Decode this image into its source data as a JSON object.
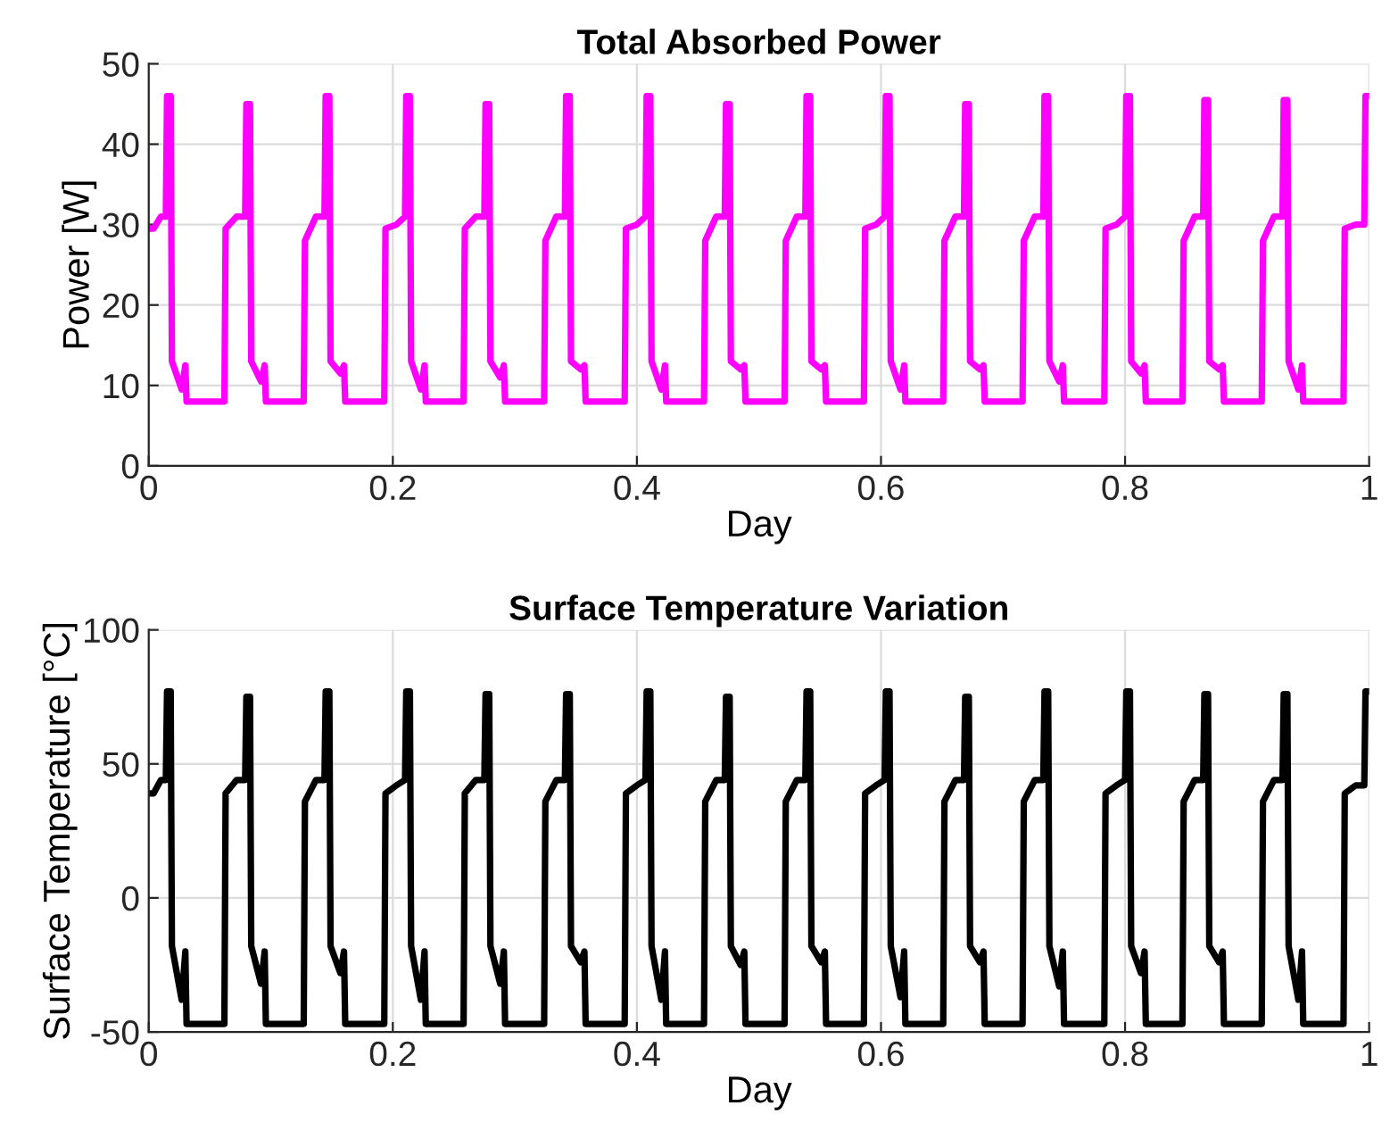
{
  "chart_data": [
    {
      "type": "line",
      "title": "Total Absorbed Power",
      "xlabel": "Day",
      "ylabel": "Power [W]",
      "xlim": [
        0,
        1
      ],
      "xticks": [
        0,
        0.2,
        0.4,
        0.6,
        0.8,
        1
      ],
      "ylim": [
        0,
        50
      ],
      "yticks": [
        0,
        10,
        20,
        30,
        40,
        50
      ],
      "grid": true,
      "line_style": "solid",
      "series": [
        {
          "color": "#ff00ff",
          "x": [
            0,
            0.004,
            0.01,
            0.014,
            0.015,
            0.018,
            0.019,
            0.027,
            0.03,
            0.031,
            0.062,
            0.063,
            0.072,
            0.079,
            0.08,
            0.083,
            0.084,
            0.092,
            0.095,
            0.096,
            0.127,
            0.128,
            0.137,
            0.144,
            0.145,
            0.148,
            0.149,
            0.157,
            0.16,
            0.161,
            0.193,
            0.194,
            0.203,
            0.21,
            0.211,
            0.214,
            0.215,
            0.223,
            0.226,
            0.227,
            0.258,
            0.259,
            0.268,
            0.275,
            0.276,
            0.279,
            0.28,
            0.288,
            0.291,
            0.292,
            0.324,
            0.325,
            0.334,
            0.341,
            0.342,
            0.345,
            0.346,
            0.354,
            0.357,
            0.358,
            0.39,
            0.391,
            0.4,
            0.407,
            0.408,
            0.411,
            0.412,
            0.42,
            0.423,
            0.424,
            0.455,
            0.456,
            0.465,
            0.472,
            0.473,
            0.476,
            0.477,
            0.485,
            0.488,
            0.489,
            0.521,
            0.522,
            0.531,
            0.538,
            0.539,
            0.542,
            0.543,
            0.551,
            0.554,
            0.555,
            0.586,
            0.587,
            0.596,
            0.603,
            0.604,
            0.607,
            0.608,
            0.616,
            0.619,
            0.62,
            0.651,
            0.652,
            0.661,
            0.668,
            0.669,
            0.672,
            0.673,
            0.681,
            0.684,
            0.685,
            0.716,
            0.717,
            0.726,
            0.733,
            0.734,
            0.737,
            0.738,
            0.746,
            0.749,
            0.75,
            0.783,
            0.784,
            0.793,
            0.8,
            0.801,
            0.804,
            0.805,
            0.813,
            0.816,
            0.817,
            0.847,
            0.848,
            0.857,
            0.864,
            0.865,
            0.868,
            0.869,
            0.877,
            0.88,
            0.881,
            0.912,
            0.913,
            0.922,
            0.929,
            0.93,
            0.933,
            0.934,
            0.942,
            0.945,
            0.946,
            0.979,
            0.98,
            0.989,
            0.996,
            0.997,
            1.0
          ],
          "values": [
            29.5,
            29.5,
            31,
            31,
            46,
            46,
            13,
            9.5,
            12.5,
            8,
            8,
            29.5,
            31,
            31,
            45,
            45,
            13,
            10.5,
            12.5,
            8,
            8,
            28,
            31,
            31,
            46,
            46,
            13,
            11.5,
            12.5,
            8,
            8,
            29.5,
            30,
            31,
            46,
            46,
            13,
            9.5,
            12.5,
            8,
            8,
            29.5,
            31,
            31,
            45,
            45,
            13,
            11,
            12.5,
            8,
            8,
            28,
            31,
            31,
            46,
            46,
            13,
            12,
            12.5,
            8,
            8,
            29.5,
            30,
            31,
            46,
            46,
            13,
            9.5,
            12.5,
            8,
            8,
            28,
            31,
            31,
            45,
            45,
            13,
            12,
            12.5,
            8,
            8,
            28,
            31,
            31,
            46,
            46,
            13,
            12,
            12.5,
            8,
            8,
            29.5,
            30,
            31,
            46,
            46,
            13,
            9.5,
            12.5,
            8,
            8,
            28,
            31,
            31,
            45,
            45,
            13,
            12,
            12.5,
            8,
            8,
            28,
            31,
            31,
            46,
            46,
            13,
            10.5,
            12.5,
            8,
            8,
            29.5,
            30,
            31,
            46,
            46,
            13,
            11.5,
            12.5,
            8,
            8,
            28,
            31,
            31,
            45.5,
            45.5,
            13,
            12,
            12.5,
            8,
            8,
            28,
            31,
            31,
            45.5,
            45.5,
            13,
            9.5,
            12.5,
            8,
            8,
            29.5,
            30,
            30,
            46,
            46
          ]
        }
      ]
    },
    {
      "type": "line",
      "title": "Surface Temperature Variation",
      "xlabel": "Day",
      "ylabel": "Surface Temperature [°C]",
      "xlim": [
        0,
        1
      ],
      "xticks": [
        0,
        0.2,
        0.4,
        0.6,
        0.8,
        1
      ],
      "ylim": [
        -50,
        100
      ],
      "yticks": [
        -50,
        0,
        50,
        100
      ],
      "grid": true,
      "line_style": "solid",
      "series": [
        {
          "color": "#000000",
          "x": [
            0,
            0.004,
            0.01,
            0.014,
            0.015,
            0.018,
            0.019,
            0.027,
            0.03,
            0.031,
            0.062,
            0.063,
            0.072,
            0.079,
            0.08,
            0.083,
            0.084,
            0.092,
            0.095,
            0.096,
            0.127,
            0.128,
            0.137,
            0.144,
            0.145,
            0.148,
            0.149,
            0.157,
            0.16,
            0.161,
            0.193,
            0.194,
            0.203,
            0.21,
            0.211,
            0.214,
            0.215,
            0.223,
            0.226,
            0.227,
            0.258,
            0.259,
            0.268,
            0.275,
            0.276,
            0.279,
            0.28,
            0.288,
            0.291,
            0.292,
            0.324,
            0.325,
            0.334,
            0.341,
            0.342,
            0.345,
            0.346,
            0.354,
            0.357,
            0.358,
            0.39,
            0.391,
            0.4,
            0.407,
            0.408,
            0.411,
            0.412,
            0.42,
            0.423,
            0.424,
            0.455,
            0.456,
            0.465,
            0.472,
            0.473,
            0.476,
            0.477,
            0.485,
            0.488,
            0.489,
            0.521,
            0.522,
            0.531,
            0.538,
            0.539,
            0.542,
            0.543,
            0.551,
            0.554,
            0.555,
            0.586,
            0.587,
            0.596,
            0.603,
            0.604,
            0.607,
            0.608,
            0.616,
            0.619,
            0.62,
            0.651,
            0.652,
            0.661,
            0.668,
            0.669,
            0.672,
            0.673,
            0.681,
            0.684,
            0.685,
            0.716,
            0.717,
            0.726,
            0.733,
            0.734,
            0.737,
            0.738,
            0.746,
            0.749,
            0.75,
            0.783,
            0.784,
            0.793,
            0.8,
            0.801,
            0.804,
            0.805,
            0.813,
            0.816,
            0.817,
            0.847,
            0.848,
            0.857,
            0.864,
            0.865,
            0.868,
            0.869,
            0.877,
            0.88,
            0.881,
            0.912,
            0.913,
            0.922,
            0.929,
            0.93,
            0.933,
            0.934,
            0.942,
            0.945,
            0.946,
            0.979,
            0.98,
            0.989,
            0.996,
            0.997,
            1.0
          ],
          "values": [
            39,
            39,
            44,
            44,
            77,
            77,
            -18,
            -38,
            -20,
            -47,
            -47,
            39,
            44,
            44,
            75,
            75,
            -18,
            -32,
            -20,
            -47,
            -47,
            36,
            44,
            44,
            77,
            77,
            -18,
            -28,
            -20,
            -47,
            -47,
            39,
            42,
            44,
            77,
            77,
            -18,
            -38,
            -20,
            -47,
            -47,
            39,
            44,
            44,
            76,
            76,
            -18,
            -32,
            -20,
            -47,
            -47,
            36,
            44,
            44,
            76,
            76,
            -18,
            -24,
            -20,
            -47,
            -47,
            39,
            42,
            44,
            77,
            77,
            -18,
            -38,
            -20,
            -47,
            -47,
            36,
            44,
            44,
            75,
            75,
            -18,
            -25,
            -20,
            -47,
            -47,
            36,
            44,
            44,
            77,
            77,
            -18,
            -24,
            -20,
            -47,
            -47,
            39,
            42,
            44,
            77,
            77,
            -18,
            -37,
            -20,
            -47,
            -47,
            36,
            44,
            44,
            75,
            75,
            -18,
            -24,
            -20,
            -47,
            -47,
            36,
            44,
            44,
            77,
            77,
            -18,
            -33,
            -20,
            -47,
            -47,
            39,
            42,
            44,
            77,
            77,
            -18,
            -28,
            -20,
            -47,
            -47,
            36,
            44,
            44,
            76,
            76,
            -18,
            -24,
            -20,
            -47,
            -47,
            36,
            44,
            44,
            76,
            76,
            -18,
            -38,
            -20,
            -47,
            -47,
            39,
            42,
            42,
            77,
            77
          ]
        }
      ]
    }
  ]
}
